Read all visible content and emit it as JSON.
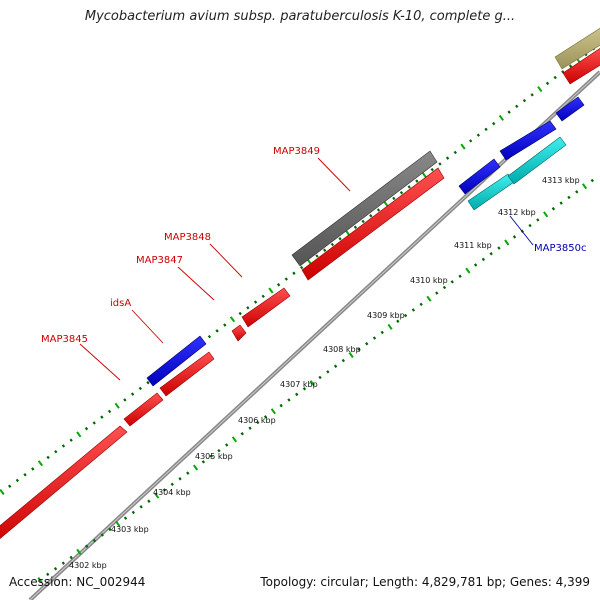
{
  "title": "Mycobacterium avium subsp. paratuberculosis K-10, complete g...",
  "footer": {
    "accession": "Accession: NC_002944",
    "stats": "Topology: circular; Length: 4,829,781 bp; Genes: 4,399"
  },
  "colors": {
    "forward_gene": "#ff0000",
    "reverse_gene": "#0000ff",
    "grey_feature": "#666666",
    "cyan_feature": "#00cccc",
    "olive_feature": "#b8b070",
    "tick_minor": "#008000",
    "tick_major": "#00aa00",
    "label_forward": "#cc0000",
    "label_reverse": "#0000aa",
    "backbone": "#888888"
  },
  "scale_labels": [
    "4302 kbp",
    "4303 kbp",
    "4304 kbp",
    "4305 kbp",
    "4306 kbp",
    "4307 kbp",
    "4308 kbp",
    "4309 kbp",
    "4310 kbp",
    "4311 kbp",
    "4312 kbp",
    "4313 kbp"
  ],
  "gene_labels": [
    {
      "text": "MAP3845",
      "strand": "forward"
    },
    {
      "text": "idsA",
      "strand": "forward"
    },
    {
      "text": "MAP3847",
      "strand": "forward"
    },
    {
      "text": "MAP3848",
      "strand": "forward"
    },
    {
      "text": "MAP3849",
      "strand": "forward"
    },
    {
      "text": "MAP3850c",
      "strand": "reverse"
    }
  ]
}
